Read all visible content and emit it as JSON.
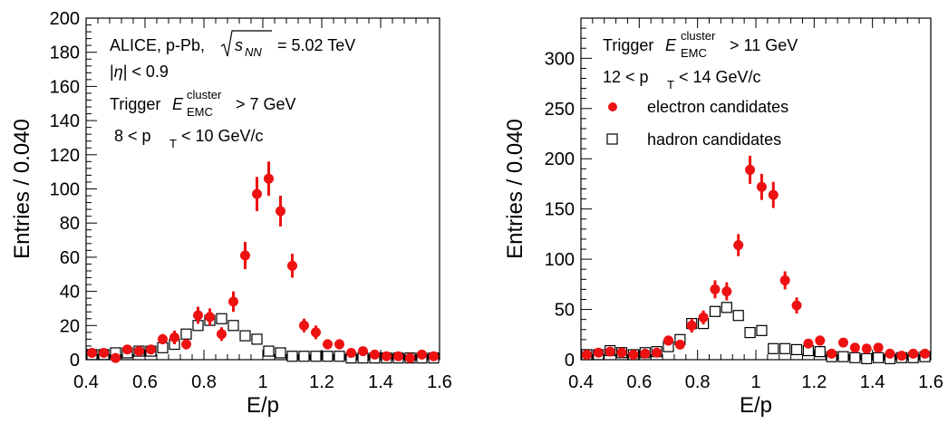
{
  "chart_data": [
    {
      "type": "scatter",
      "xlabel": "E/p",
      "ylabel": "Entries / 0.040",
      "xlim": [
        0.4,
        1.6
      ],
      "ylim": [
        0,
        200
      ],
      "x_ticks": [
        "0.4",
        "0.6",
        "0.8",
        "1",
        "1.2",
        "1.4",
        "1.6"
      ],
      "y_ticks": [
        "0",
        "20",
        "40",
        "60",
        "80",
        "100",
        "120",
        "140",
        "160",
        "180",
        "200"
      ],
      "y_tick_values": [
        0,
        20,
        40,
        60,
        80,
        100,
        120,
        140,
        160,
        180,
        200
      ],
      "annotations": {
        "collision": "ALICE, p-Pb,",
        "energy": "= 5.02 TeV",
        "sqrt_s": "s",
        "sqrt_sub": "NN",
        "eta_bar": "|",
        "eta_sym": "η",
        "eta_rest": "| < 0.9",
        "trigger_word": "Trigger",
        "trigger_E": "E",
        "trigger_sup": "cluster",
        "trigger_sub": "EMC",
        "trigger_cut": "> 7 GeV",
        "pt_lo": "8 < p",
        "pt_sub": "T",
        "pt_hi": "< 10 GeV/c"
      },
      "grid": false,
      "series": [
        {
          "role": "electron",
          "marker": "filled-circle",
          "color": "#ee1111",
          "x": [
            0.42,
            0.46,
            0.5,
            0.54,
            0.58,
            0.62,
            0.66,
            0.7,
            0.74,
            0.78,
            0.82,
            0.86,
            0.9,
            0.94,
            0.98,
            1.02,
            1.06,
            1.1,
            1.14,
            1.18,
            1.22,
            1.26,
            1.3,
            1.34,
            1.38,
            1.42,
            1.46,
            1.5,
            1.54,
            1.58
          ],
          "y": [
            4,
            4,
            1,
            6,
            5,
            6,
            12,
            13,
            9,
            26,
            25,
            15,
            34,
            61,
            97,
            106,
            87,
            55,
            20,
            16,
            9,
            9,
            4,
            5,
            3,
            2,
            2,
            1,
            3,
            2
          ],
          "yerr": [
            2,
            2,
            1,
            2,
            2,
            2,
            3,
            4,
            3,
            5,
            5,
            4,
            6,
            8,
            10,
            10,
            9,
            7,
            4,
            4,
            3,
            3,
            2,
            2,
            2,
            1,
            1,
            1,
            2,
            1
          ]
        },
        {
          "role": "hadron",
          "marker": "open-square",
          "color": "#000000",
          "x": [
            0.42,
            0.46,
            0.5,
            0.54,
            0.58,
            0.62,
            0.66,
            0.7,
            0.74,
            0.78,
            0.82,
            0.86,
            0.9,
            0.94,
            0.98,
            1.02,
            1.06,
            1.1,
            1.14,
            1.18,
            1.22,
            1.26,
            1.3,
            1.34,
            1.38,
            1.42,
            1.46,
            1.5,
            1.54,
            1.58
          ],
          "y": [
            3,
            3,
            4,
            4,
            5,
            5,
            7,
            9,
            15,
            20,
            23,
            24,
            20,
            14,
            12,
            5,
            4,
            2,
            2,
            2,
            2,
            2,
            1,
            1,
            1,
            1,
            1,
            1,
            1,
            1
          ]
        }
      ]
    },
    {
      "type": "scatter",
      "xlabel": "E/p",
      "ylabel": "Entries / 0.040",
      "xlim": [
        0.4,
        1.6
      ],
      "ylim": [
        0,
        340
      ],
      "x_ticks": [
        "0.4",
        "0.6",
        "0.8",
        "1",
        "1.2",
        "1.4",
        "1.6"
      ],
      "y_ticks": [
        "0",
        "50",
        "100",
        "150",
        "200",
        "250",
        "300"
      ],
      "y_tick_values": [
        0,
        50,
        100,
        150,
        200,
        250,
        300
      ],
      "annotations": {
        "trigger_word": "Trigger",
        "trigger_E": "E",
        "trigger_sup": "cluster",
        "trigger_sub": "EMC",
        "trigger_cut": "> 11 GeV",
        "pt_lo": "12 < p",
        "pt_sub": "T",
        "pt_hi": "< 14 GeV/c"
      },
      "legend": [
        "electron candidates",
        "hadron candidates"
      ],
      "legend_position": "top-left",
      "grid": false,
      "series": [
        {
          "role": "electron",
          "marker": "filled-circle",
          "color": "#ee1111",
          "x": [
            0.42,
            0.46,
            0.5,
            0.54,
            0.58,
            0.62,
            0.66,
            0.7,
            0.74,
            0.78,
            0.82,
            0.86,
            0.9,
            0.94,
            0.98,
            1.02,
            1.06,
            1.1,
            1.14,
            1.18,
            1.22,
            1.26,
            1.3,
            1.34,
            1.38,
            1.42,
            1.46,
            1.5,
            1.54,
            1.58
          ],
          "y": [
            5,
            7,
            8,
            7,
            5,
            6,
            7,
            19,
            15,
            34,
            42,
            70,
            68,
            114,
            189,
            172,
            164,
            79,
            54,
            16,
            19,
            6,
            17,
            12,
            11,
            12,
            6,
            4,
            6,
            6
          ],
          "yerr": [
            3,
            3,
            3,
            3,
            2,
            2,
            3,
            5,
            4,
            7,
            7,
            9,
            9,
            11,
            14,
            13,
            13,
            9,
            8,
            4,
            5,
            2,
            4,
            3,
            3,
            3,
            2,
            2,
            2,
            2
          ]
        },
        {
          "role": "hadron",
          "marker": "open-square",
          "color": "#000000",
          "x": [
            0.42,
            0.46,
            0.5,
            0.54,
            0.58,
            0.62,
            0.66,
            0.7,
            0.74,
            0.78,
            0.82,
            0.86,
            0.9,
            0.94,
            0.98,
            1.02,
            1.06,
            1.1,
            1.14,
            1.18,
            1.22,
            1.26,
            1.3,
            1.34,
            1.38,
            1.42,
            1.46,
            1.5,
            1.54,
            1.58
          ],
          "y": [
            5,
            5,
            9,
            7,
            5,
            7,
            8,
            13,
            20,
            36,
            36,
            48,
            52,
            44,
            27,
            29,
            11,
            11,
            10,
            9,
            8,
            3,
            3,
            2,
            1,
            2,
            1,
            2,
            2,
            3
          ]
        }
      ]
    }
  ]
}
